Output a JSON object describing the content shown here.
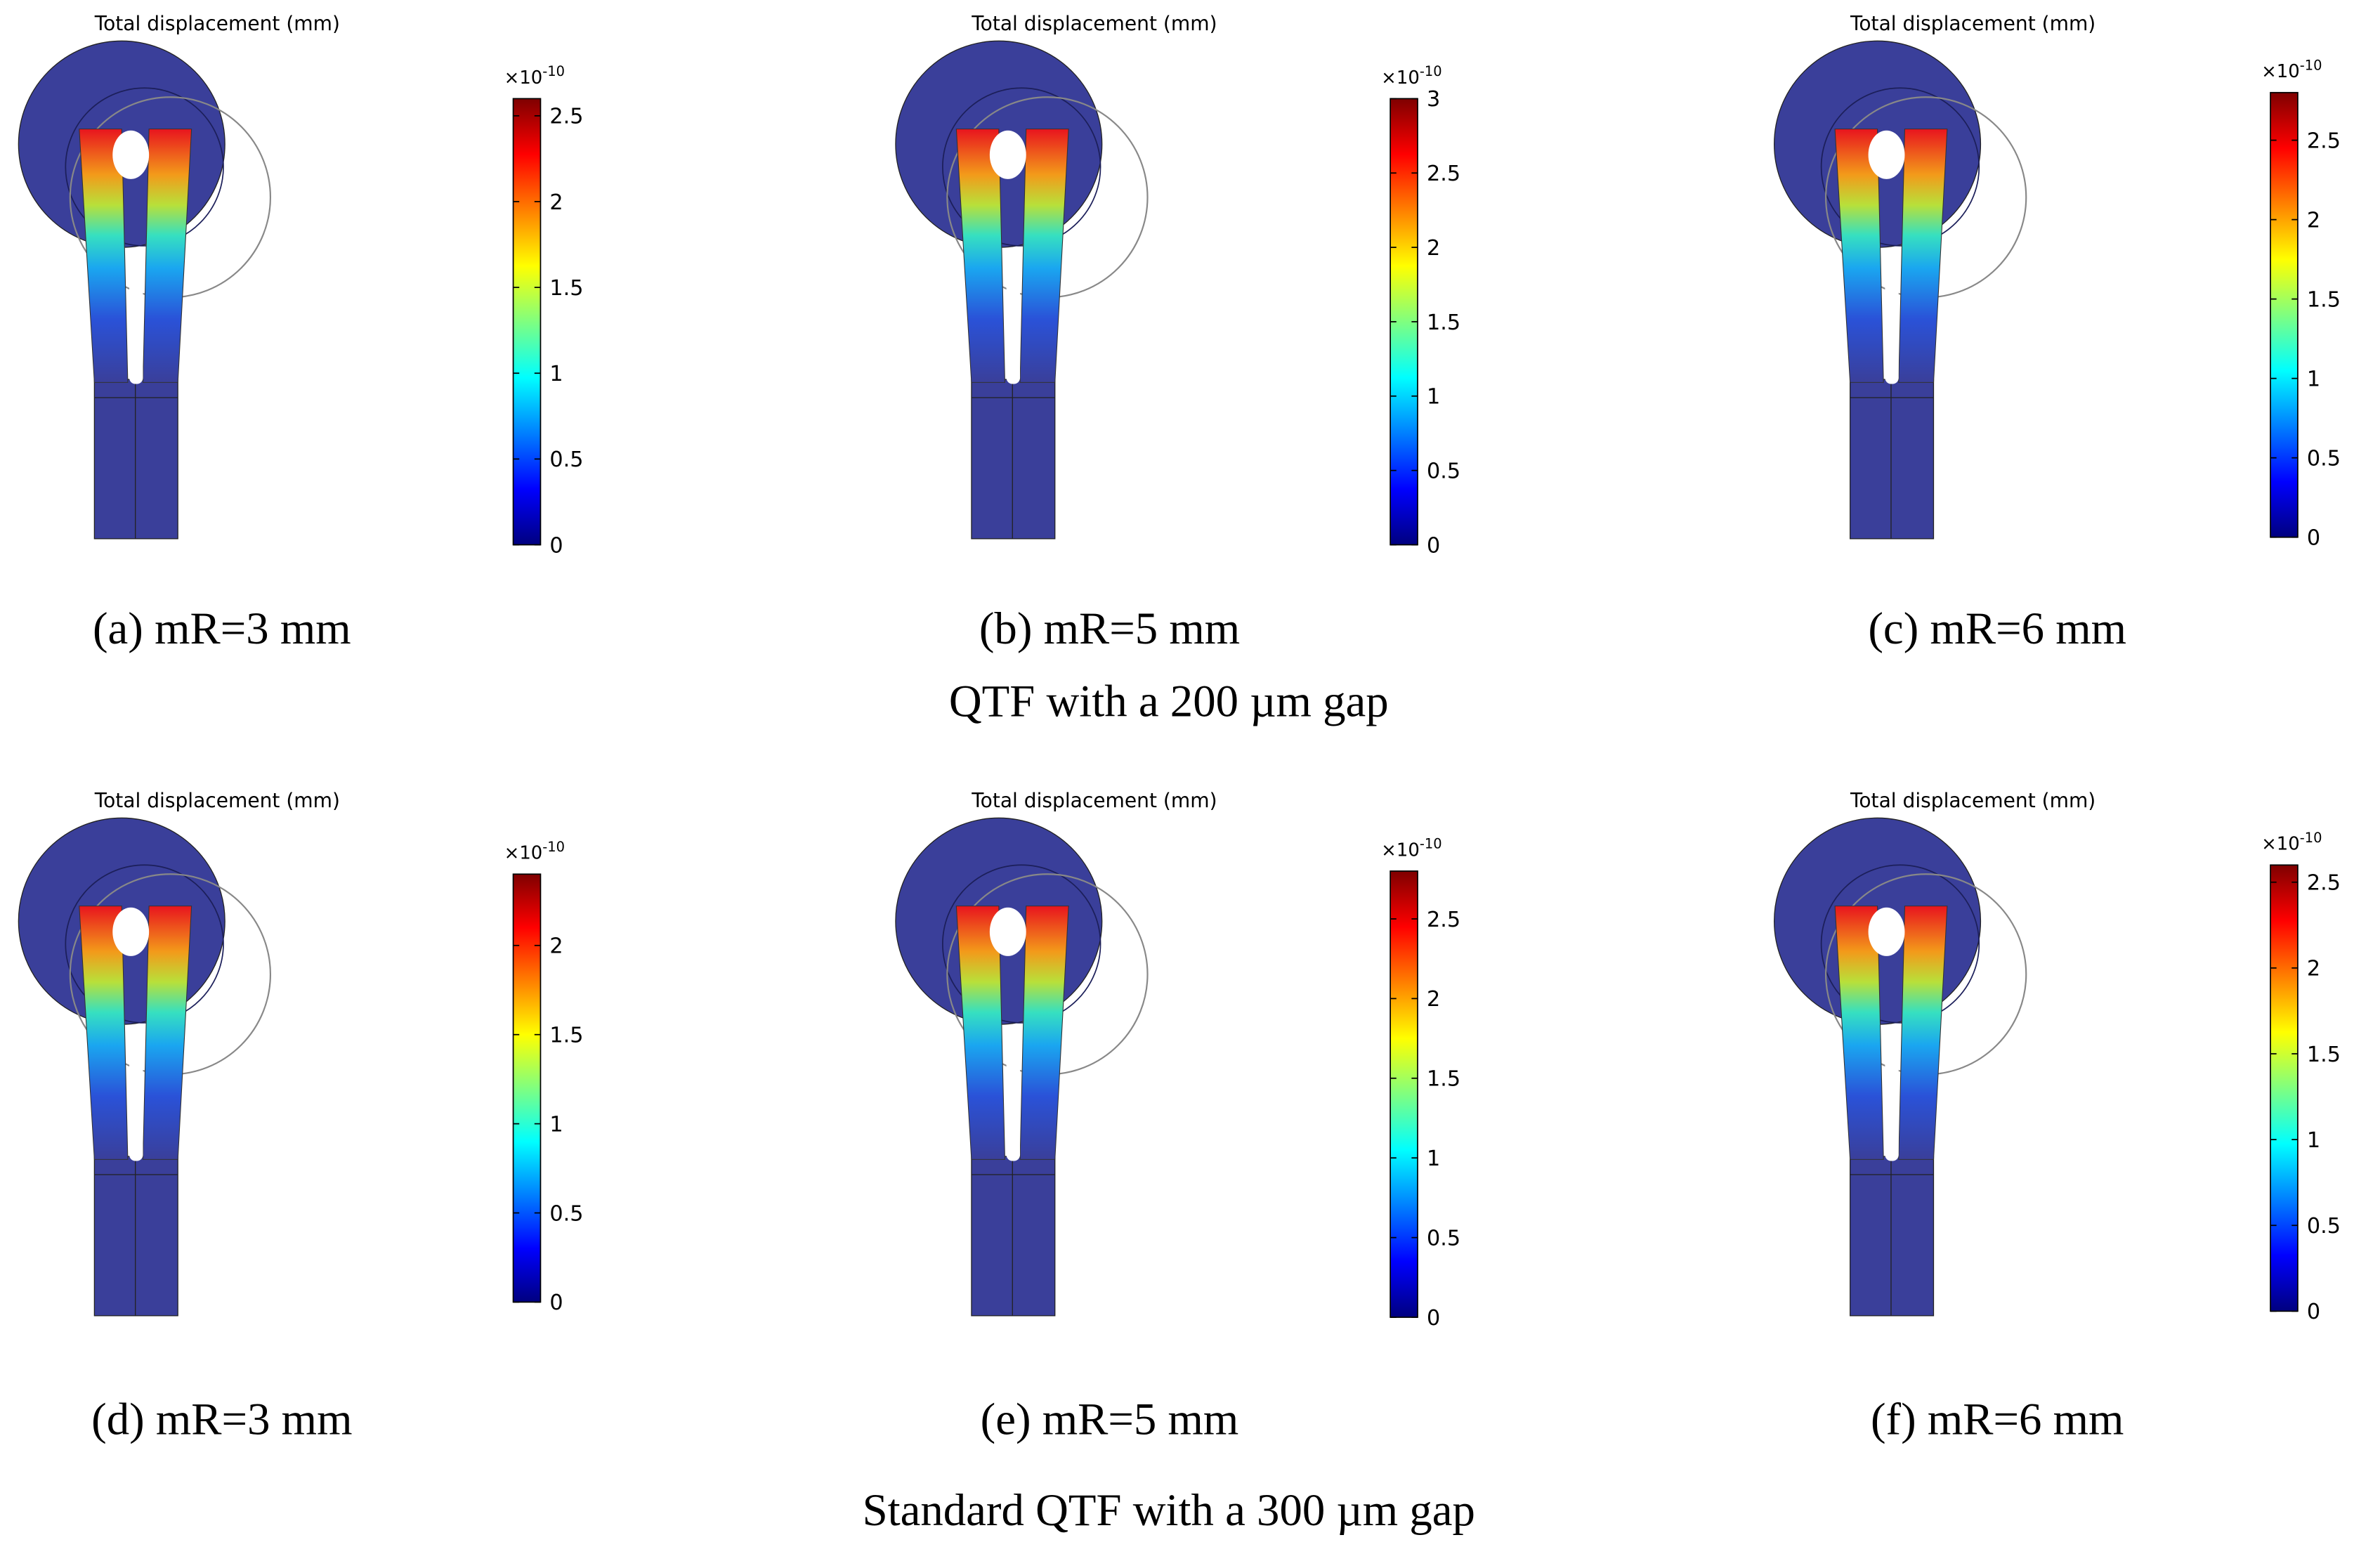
{
  "panels": [
    {
      "title": "Total displacement (mm)",
      "multiplier": "×10",
      "exponent": "-10",
      "ticks": [
        0,
        0.5,
        1,
        1.5,
        2,
        2.5
      ],
      "range": [
        0,
        2.6
      ],
      "caption": "(a) mR=3 mm"
    },
    {
      "title": "Total displacement (mm)",
      "multiplier": "×10",
      "exponent": "-10",
      "ticks": [
        0,
        0.5,
        1,
        1.5,
        2,
        2.5,
        3
      ],
      "range": [
        0,
        3
      ],
      "caption": "(b) mR=5 mm"
    },
    {
      "title": "Total displacement (mm)",
      "multiplier": "×10",
      "exponent": "-10",
      "ticks": [
        0,
        0.5,
        1,
        1.5,
        2,
        2.5
      ],
      "range": [
        0,
        2.8
      ],
      "caption": "(c) mR=6 mm"
    },
    {
      "title": "Total displacement (mm)",
      "multiplier": "×10",
      "exponent": "-10",
      "ticks": [
        0,
        0.5,
        1,
        1.5,
        2
      ],
      "range": [
        0,
        2.4
      ],
      "caption": "(d) mR=3 mm"
    },
    {
      "title": "Total displacement (mm)",
      "multiplier": "×10",
      "exponent": "-10",
      "ticks": [
        0,
        0.5,
        1,
        1.5,
        2,
        2.5
      ],
      "range": [
        0,
        2.8
      ],
      "caption": "(e) mR=5 mm"
    },
    {
      "title": "Total displacement (mm)",
      "multiplier": "×10",
      "exponent": "-10",
      "ticks": [
        0,
        0.5,
        1,
        1.5,
        2,
        2.5
      ],
      "range": [
        0,
        2.6
      ],
      "caption": "(f) mR=6 mm"
    }
  ],
  "group_captions": [
    "QTF with a 200 µm gap",
    "Standard QTF with a 300 µm gap"
  ]
}
